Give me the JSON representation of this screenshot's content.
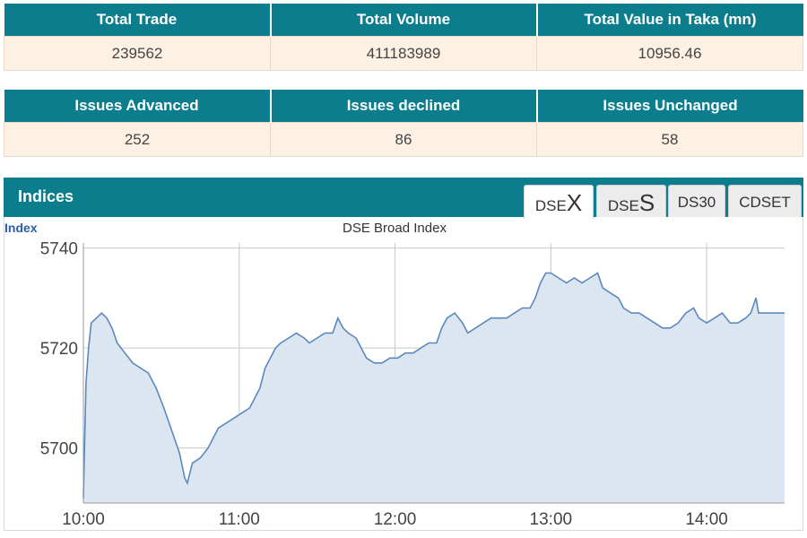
{
  "summary_top": {
    "headers": [
      "Total Trade",
      "Total Volume",
      "Total Value in Taka (mn)"
    ],
    "values": [
      "239562",
      "411183989",
      "10956.46"
    ]
  },
  "summary_issues": {
    "headers": [
      "Issues Advanced",
      "Issues declined",
      "Issues Unchanged"
    ],
    "values": [
      "252",
      "86",
      "58"
    ]
  },
  "indices": {
    "title": "Indices",
    "tabs": [
      {
        "prefix": "DSE",
        "big": "X",
        "active": true
      },
      {
        "prefix": "DSE",
        "big": "S",
        "active": false
      },
      {
        "prefix": "DS30",
        "big": "",
        "active": false
      },
      {
        "prefix": "CDSET",
        "big": "",
        "active": false
      }
    ]
  },
  "colors": {
    "header_bg": "#0b7d8c",
    "cell_bg": "#fdf1e4",
    "line": "#5b88bf",
    "area": "#dce6f0"
  },
  "chart_data": {
    "type": "area",
    "title": "DSE Broad Index",
    "ylabel": "Index",
    "xlabel": "",
    "grid": true,
    "xlim": [
      "10:00",
      "14:30"
    ],
    "ylim": [
      5689,
      5741
    ],
    "yticks": [
      5700,
      5720,
      5740
    ],
    "xticks": [
      "10:00",
      "11:00",
      "12:00",
      "13:00",
      "14:00"
    ],
    "series": [
      {
        "points": [
          [
            "10:00",
            5690
          ],
          [
            "10:01",
            5713
          ],
          [
            "10:02",
            5720
          ],
          [
            "10:03",
            5725
          ],
          [
            "10:05",
            5726
          ],
          [
            "10:07",
            5727
          ],
          [
            "10:09",
            5726
          ],
          [
            "10:11",
            5724
          ],
          [
            "10:13",
            5721
          ],
          [
            "10:16",
            5719
          ],
          [
            "10:19",
            5717
          ],
          [
            "10:22",
            5716
          ],
          [
            "10:25",
            5715
          ],
          [
            "10:28",
            5712
          ],
          [
            "10:31",
            5708
          ],
          [
            "10:33",
            5705
          ],
          [
            "10:35",
            5702
          ],
          [
            "10:37",
            5699
          ],
          [
            "10:39",
            5694
          ],
          [
            "10:40",
            5693
          ],
          [
            "10:42",
            5697
          ],
          [
            "10:45",
            5698
          ],
          [
            "10:48",
            5700
          ],
          [
            "10:50",
            5702
          ],
          [
            "10:52",
            5704
          ],
          [
            "10:55",
            5705
          ],
          [
            "10:58",
            5706
          ],
          [
            "11:01",
            5707
          ],
          [
            "11:04",
            5708
          ],
          [
            "11:06",
            5710
          ],
          [
            "11:08",
            5712
          ],
          [
            "11:10",
            5716
          ],
          [
            "11:12",
            5718
          ],
          [
            "11:14",
            5720
          ],
          [
            "11:16",
            5721
          ],
          [
            "11:19",
            5722
          ],
          [
            "11:22",
            5723
          ],
          [
            "11:25",
            5722
          ],
          [
            "11:27",
            5721
          ],
          [
            "11:30",
            5722
          ],
          [
            "11:33",
            5723
          ],
          [
            "11:36",
            5723
          ],
          [
            "11:38",
            5726
          ],
          [
            "11:40",
            5724
          ],
          [
            "11:42",
            5723
          ],
          [
            "11:45",
            5722
          ],
          [
            "11:47",
            5720
          ],
          [
            "11:49",
            5718
          ],
          [
            "11:52",
            5717
          ],
          [
            "11:55",
            5717
          ],
          [
            "11:58",
            5718
          ],
          [
            "12:01",
            5718
          ],
          [
            "12:04",
            5719
          ],
          [
            "12:07",
            5719
          ],
          [
            "12:10",
            5720
          ],
          [
            "12:13",
            5721
          ],
          [
            "12:16",
            5721
          ],
          [
            "12:18",
            5724
          ],
          [
            "12:20",
            5726
          ],
          [
            "12:23",
            5727
          ],
          [
            "12:26",
            5725
          ],
          [
            "12:28",
            5723
          ],
          [
            "12:31",
            5724
          ],
          [
            "12:34",
            5725
          ],
          [
            "12:37",
            5726
          ],
          [
            "12:40",
            5726
          ],
          [
            "12:43",
            5726
          ],
          [
            "12:46",
            5727
          ],
          [
            "12:49",
            5728
          ],
          [
            "12:52",
            5728
          ],
          [
            "12:54",
            5730
          ],
          [
            "12:56",
            5733
          ],
          [
            "12:58",
            5735
          ],
          [
            "13:00",
            5735
          ],
          [
            "13:03",
            5734
          ],
          [
            "13:06",
            5733
          ],
          [
            "13:09",
            5734
          ],
          [
            "13:12",
            5733
          ],
          [
            "13:15",
            5734
          ],
          [
            "13:18",
            5735
          ],
          [
            "13:20",
            5732
          ],
          [
            "13:23",
            5731
          ],
          [
            "13:26",
            5730
          ],
          [
            "13:28",
            5728
          ],
          [
            "13:31",
            5727
          ],
          [
            "13:34",
            5727
          ],
          [
            "13:37",
            5726
          ],
          [
            "13:40",
            5725
          ],
          [
            "13:43",
            5724
          ],
          [
            "13:46",
            5724
          ],
          [
            "13:49",
            5725
          ],
          [
            "13:52",
            5727
          ],
          [
            "13:55",
            5728
          ],
          [
            "13:57",
            5726
          ],
          [
            "14:00",
            5725
          ],
          [
            "14:03",
            5726
          ],
          [
            "14:06",
            5727
          ],
          [
            "14:09",
            5725
          ],
          [
            "14:12",
            5725
          ],
          [
            "14:15",
            5726
          ],
          [
            "14:17",
            5727
          ],
          [
            "14:19",
            5730
          ],
          [
            "14:20",
            5727
          ],
          [
            "14:30",
            5727
          ]
        ]
      }
    ]
  }
}
